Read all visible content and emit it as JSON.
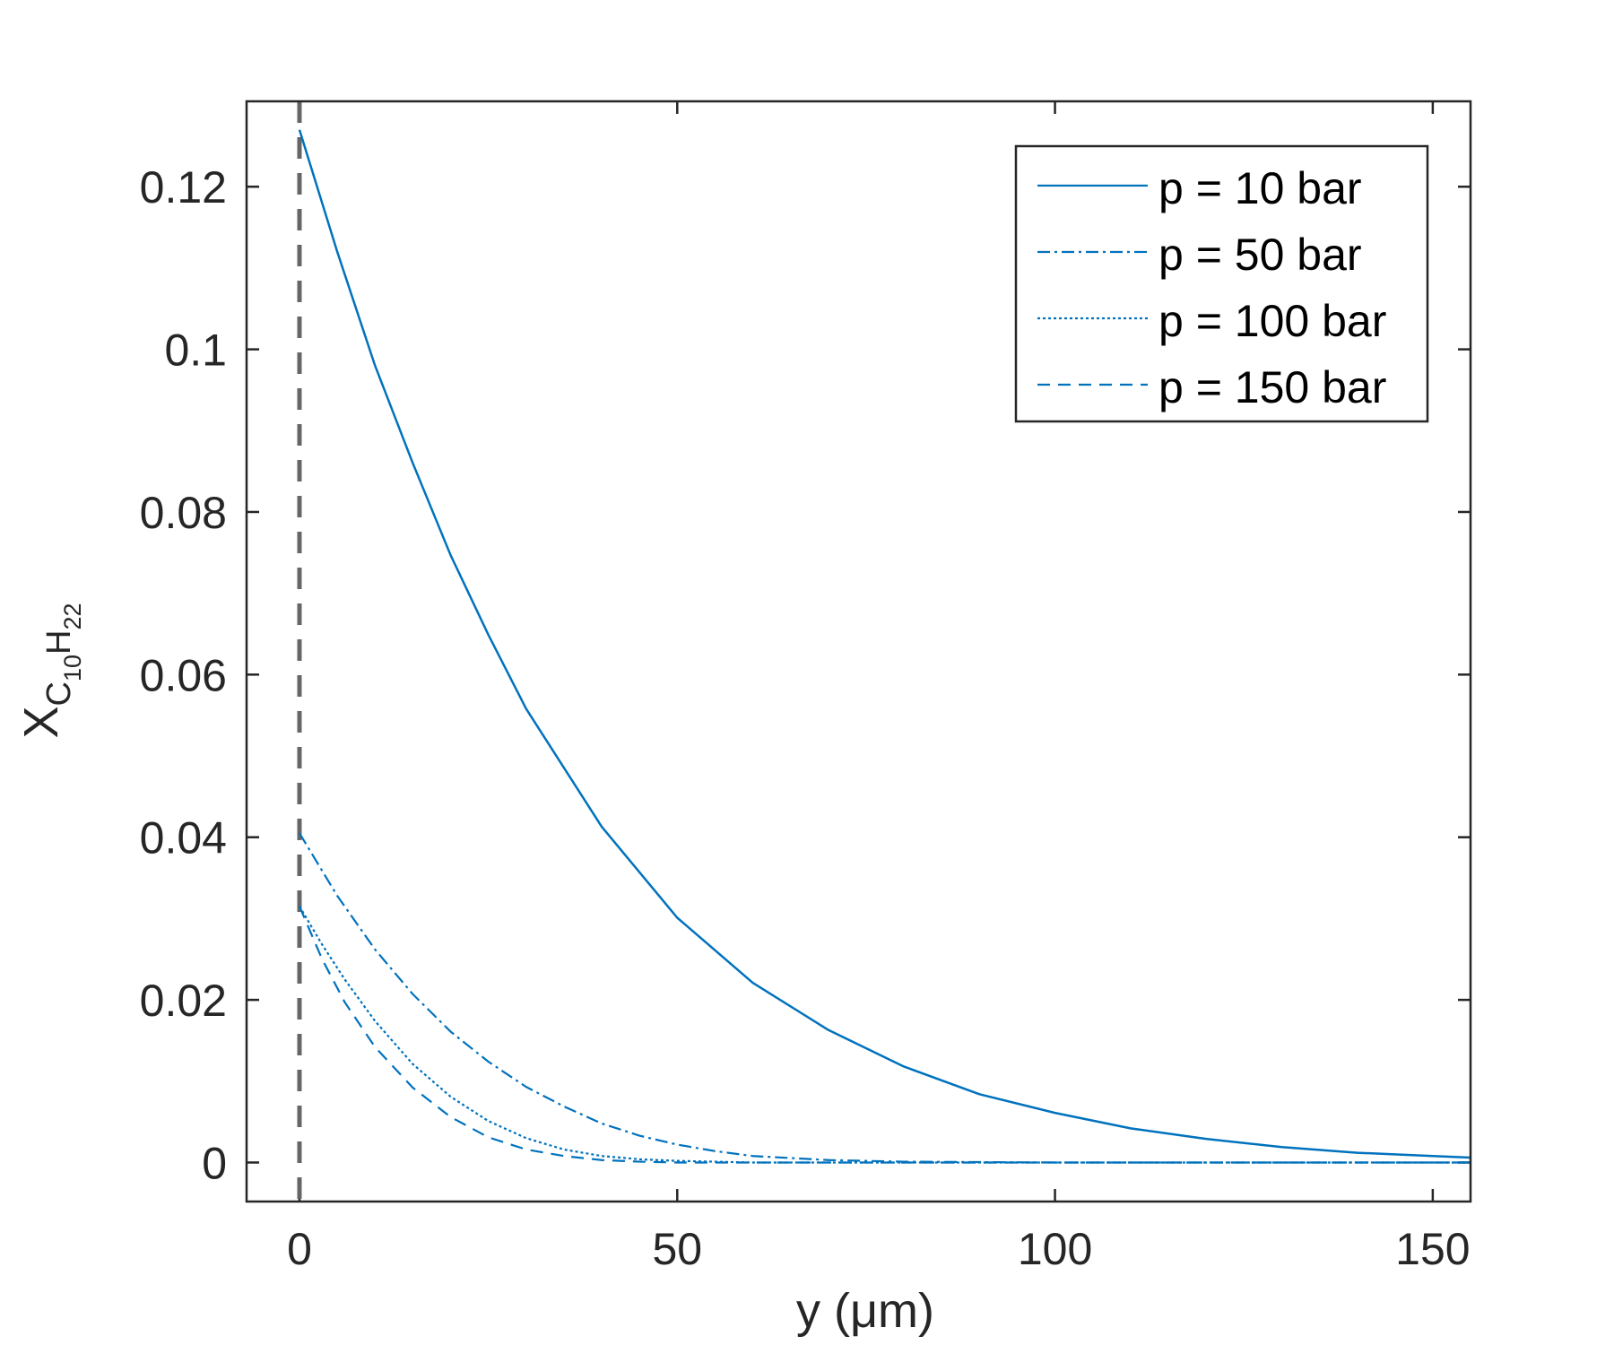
{
  "chart_data": {
    "type": "line",
    "xlabel": "y (μm)",
    "ylabel": "X_C10H22",
    "xlim": [
      -7,
      155
    ],
    "ylim": [
      -0.0048,
      0.1305
    ],
    "xticks": [
      0,
      50,
      100,
      150
    ],
    "xtick_labels": [
      "0",
      "50",
      "100",
      "150"
    ],
    "yticks": [
      0,
      0.02,
      0.04,
      0.06,
      0.08,
      0.1,
      0.12
    ],
    "ytick_labels": [
      "0",
      "0.02",
      "0.04",
      "0.06",
      "0.08",
      "0.1",
      "0.12"
    ],
    "grid": false,
    "legend_position": "top-right",
    "colors": {
      "series": "#0072bd",
      "interface_line": "#666666",
      "axes": "#262626"
    },
    "vertical_marker": {
      "x": 0,
      "style": "dashed"
    },
    "series": [
      {
        "name": "p = 10 bar",
        "dash": "solid",
        "x": [
          0,
          5,
          10,
          15,
          20,
          25,
          30,
          40,
          50,
          60,
          70,
          80,
          90,
          100,
          110,
          120,
          130,
          140,
          150,
          155
        ],
        "y": [
          0.127,
          0.112,
          0.098,
          0.086,
          0.0747,
          0.0649,
          0.0558,
          0.0413,
          0.0301,
          0.0221,
          0.0163,
          0.0118,
          0.0084,
          0.0061,
          0.0042,
          0.0029,
          0.0019,
          0.0012,
          0.0008,
          0.0006
        ]
      },
      {
        "name": "p = 50 bar",
        "dash": "dashdot",
        "x": [
          0,
          5,
          10,
          15,
          20,
          25,
          30,
          35,
          40,
          45,
          50,
          55,
          60,
          70,
          80,
          100,
          155
        ],
        "y": [
          0.0405,
          0.0328,
          0.0262,
          0.0207,
          0.0161,
          0.0124,
          0.0093,
          0.0069,
          0.0048,
          0.0033,
          0.0022,
          0.0014,
          0.0008,
          0.0003,
          0.0001,
          0,
          0
        ]
      },
      {
        "name": "p = 100 bar",
        "dash": "dotted",
        "x": [
          0,
          3,
          6,
          10,
          15,
          20,
          25,
          30,
          35,
          40,
          45,
          50,
          60,
          80,
          155
        ],
        "y": [
          0.0315,
          0.0268,
          0.0225,
          0.0174,
          0.0121,
          0.0081,
          0.0051,
          0.003,
          0.0016,
          0.0008,
          0.0004,
          0.0002,
          0,
          0,
          0
        ]
      },
      {
        "name": "p = 150 bar",
        "dash": "dashed",
        "x": [
          0,
          3,
          6,
          10,
          15,
          20,
          25,
          30,
          35,
          40,
          45,
          50,
          60,
          80,
          155
        ],
        "y": [
          0.0315,
          0.025,
          0.0197,
          0.0142,
          0.0092,
          0.0056,
          0.0031,
          0.0016,
          0.0008,
          0.0003,
          0.0001,
          0,
          0,
          0,
          0
        ]
      }
    ]
  }
}
